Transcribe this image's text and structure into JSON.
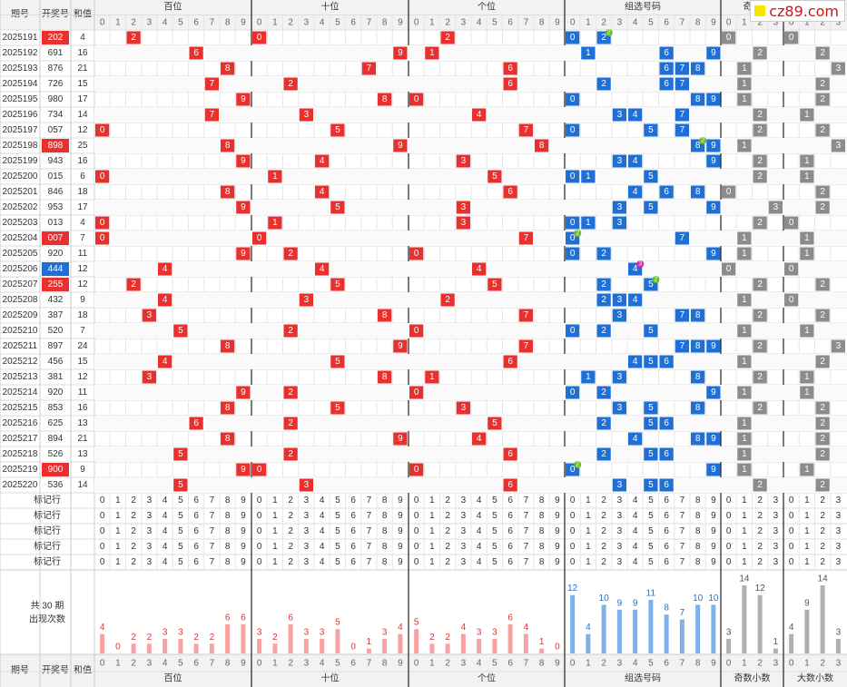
{
  "header": {
    "issue_label": "期号",
    "draw_label": "开奖号",
    "sum_label": "和值",
    "groups": [
      "百位",
      "十位",
      "个位",
      "组选号码",
      "奇数小数",
      "大数小数"
    ],
    "group_top_labels": [
      "百位",
      "十位",
      "个位",
      "组选号码",
      "奇数"
    ],
    "digits": [
      "0",
      "1",
      "2",
      "3",
      "4",
      "5",
      "6",
      "7",
      "8",
      "9"
    ],
    "small_digits": [
      "0",
      "1",
      "2",
      "3"
    ]
  },
  "watermark": "cz89.com",
  "colors": {
    "red": "#e8302f",
    "blue": "#1e6fd6",
    "gray": "#8c8c8c",
    "green": "#6cbc2a",
    "pink": "#d8279a"
  },
  "chart_data": {
    "type": "table",
    "rows": [
      {
        "issue": "2025191",
        "draw": "202",
        "sum": "4",
        "hl": "red",
        "pos": [
          2,
          0,
          2
        ],
        "group": [
          0,
          2
        ],
        "badge": {
          "d": 2,
          "n": "2",
          "c": "green"
        },
        "odd": 0,
        "big": 0
      },
      {
        "issue": "2025192",
        "draw": "691",
        "sum": "16",
        "hl": "",
        "pos": [
          6,
          9,
          1
        ],
        "group": [
          1,
          6,
          9
        ],
        "badge": null,
        "odd": 2,
        "big": 2
      },
      {
        "issue": "2025193",
        "draw": "876",
        "sum": "21",
        "hl": "",
        "pos": [
          8,
          7,
          6
        ],
        "group": [
          6,
          7,
          8
        ],
        "badge": null,
        "odd": 1,
        "big": 3
      },
      {
        "issue": "2025194",
        "draw": "726",
        "sum": "15",
        "hl": "",
        "pos": [
          7,
          2,
          6
        ],
        "group": [
          2,
          6,
          7
        ],
        "badge": null,
        "odd": 1,
        "big": 2
      },
      {
        "issue": "2025195",
        "draw": "980",
        "sum": "17",
        "hl": "",
        "pos": [
          9,
          8,
          0
        ],
        "group": [
          0,
          8,
          9
        ],
        "badge": null,
        "odd": 1,
        "big": 2
      },
      {
        "issue": "2025196",
        "draw": "734",
        "sum": "14",
        "hl": "",
        "pos": [
          7,
          3,
          4
        ],
        "group": [
          3,
          4,
          7
        ],
        "badge": null,
        "odd": 2,
        "big": 1
      },
      {
        "issue": "2025197",
        "draw": "057",
        "sum": "12",
        "hl": "",
        "pos": [
          0,
          5,
          7
        ],
        "group": [
          0,
          5,
          7
        ],
        "badge": null,
        "odd": 2,
        "big": 2
      },
      {
        "issue": "2025198",
        "draw": "898",
        "sum": "25",
        "hl": "red",
        "pos": [
          8,
          9,
          8
        ],
        "group": [
          8,
          9
        ],
        "badge": {
          "d": 8,
          "n": "2",
          "c": "green"
        },
        "odd": 1,
        "big": 3
      },
      {
        "issue": "2025199",
        "draw": "943",
        "sum": "16",
        "hl": "",
        "pos": [
          9,
          4,
          3
        ],
        "group": [
          3,
          4,
          9
        ],
        "badge": null,
        "odd": 2,
        "big": 1
      },
      {
        "issue": "2025200",
        "draw": "015",
        "sum": "6",
        "hl": "",
        "pos": [
          0,
          1,
          5
        ],
        "group": [
          0,
          1,
          5
        ],
        "badge": null,
        "odd": 2,
        "big": 1
      },
      {
        "issue": "2025201",
        "draw": "846",
        "sum": "18",
        "hl": "",
        "pos": [
          8,
          4,
          6
        ],
        "group": [
          4,
          6,
          8
        ],
        "badge": null,
        "odd": 0,
        "big": 2
      },
      {
        "issue": "2025202",
        "draw": "953",
        "sum": "17",
        "hl": "",
        "pos": [
          9,
          5,
          3
        ],
        "group": [
          3,
          5,
          9
        ],
        "badge": null,
        "odd": 3,
        "big": 2
      },
      {
        "issue": "2025203",
        "draw": "013",
        "sum": "4",
        "hl": "",
        "pos": [
          0,
          1,
          3
        ],
        "group": [
          0,
          1,
          3
        ],
        "badge": null,
        "odd": 2,
        "big": 0
      },
      {
        "issue": "2025204",
        "draw": "007",
        "sum": "7",
        "hl": "red",
        "pos": [
          0,
          0,
          7
        ],
        "group": [
          0,
          7
        ],
        "badge": {
          "d": 0,
          "n": "2",
          "c": "green"
        },
        "odd": 1,
        "big": 1
      },
      {
        "issue": "2025205",
        "draw": "920",
        "sum": "11",
        "hl": "",
        "pos": [
          9,
          2,
          0
        ],
        "group": [
          0,
          2,
          9
        ],
        "badge": null,
        "odd": 1,
        "big": 1
      },
      {
        "issue": "2025206",
        "draw": "444",
        "sum": "12",
        "hl": "blue",
        "pos": [
          4,
          4,
          4
        ],
        "group": [
          4
        ],
        "badge": {
          "d": 4,
          "n": "3",
          "c": "pink"
        },
        "odd": 0,
        "big": 0
      },
      {
        "issue": "2025207",
        "draw": "255",
        "sum": "12",
        "hl": "red",
        "pos": [
          2,
          5,
          5
        ],
        "group": [
          2,
          5
        ],
        "badge": {
          "d": 5,
          "n": "2",
          "c": "green"
        },
        "odd": 2,
        "big": 2
      },
      {
        "issue": "2025208",
        "draw": "432",
        "sum": "9",
        "hl": "",
        "pos": [
          4,
          3,
          2
        ],
        "group": [
          2,
          3,
          4
        ],
        "badge": null,
        "odd": 1,
        "big": 0
      },
      {
        "issue": "2025209",
        "draw": "387",
        "sum": "18",
        "hl": "",
        "pos": [
          3,
          8,
          7
        ],
        "group": [
          3,
          7,
          8
        ],
        "badge": null,
        "odd": 2,
        "big": 2
      },
      {
        "issue": "2025210",
        "draw": "520",
        "sum": "7",
        "hl": "",
        "pos": [
          5,
          2,
          0
        ],
        "group": [
          0,
          2,
          5
        ],
        "badge": null,
        "odd": 1,
        "big": 1
      },
      {
        "issue": "2025211",
        "draw": "897",
        "sum": "24",
        "hl": "",
        "pos": [
          8,
          9,
          7
        ],
        "group": [
          7,
          8,
          9
        ],
        "badge": null,
        "odd": 2,
        "big": 3
      },
      {
        "issue": "2025212",
        "draw": "456",
        "sum": "15",
        "hl": "",
        "pos": [
          4,
          5,
          6
        ],
        "group": [
          4,
          5,
          6
        ],
        "badge": null,
        "odd": 1,
        "big": 2
      },
      {
        "issue": "2025213",
        "draw": "381",
        "sum": "12",
        "hl": "",
        "pos": [
          3,
          8,
          1
        ],
        "group": [
          1,
          3,
          8
        ],
        "badge": null,
        "odd": 2,
        "big": 1
      },
      {
        "issue": "2025214",
        "draw": "920",
        "sum": "11",
        "hl": "",
        "pos": [
          9,
          2,
          0
        ],
        "group": [
          0,
          2,
          9
        ],
        "badge": null,
        "odd": 1,
        "big": 1
      },
      {
        "issue": "2025215",
        "draw": "853",
        "sum": "16",
        "hl": "",
        "pos": [
          8,
          5,
          3
        ],
        "group": [
          3,
          5,
          8
        ],
        "badge": null,
        "odd": 2,
        "big": 2
      },
      {
        "issue": "2025216",
        "draw": "625",
        "sum": "13",
        "hl": "",
        "pos": [
          6,
          2,
          5
        ],
        "group": [
          2,
          5,
          6
        ],
        "badge": null,
        "odd": 1,
        "big": 2
      },
      {
        "issue": "2025217",
        "draw": "894",
        "sum": "21",
        "hl": "",
        "pos": [
          8,
          9,
          4
        ],
        "group": [
          4,
          8,
          9
        ],
        "badge": null,
        "odd": 1,
        "big": 2
      },
      {
        "issue": "2025218",
        "draw": "526",
        "sum": "13",
        "hl": "",
        "pos": [
          5,
          2,
          6
        ],
        "group": [
          2,
          5,
          6
        ],
        "badge": null,
        "odd": 1,
        "big": 2
      },
      {
        "issue": "2025219",
        "draw": "900",
        "sum": "9",
        "hl": "red",
        "pos": [
          9,
          0,
          0
        ],
        "group": [
          0,
          9
        ],
        "badge": {
          "d": 0,
          "n": "2",
          "c": "green"
        },
        "odd": 1,
        "big": 1
      },
      {
        "issue": "2025220",
        "draw": "536",
        "sum": "14",
        "hl": "",
        "pos": [
          5,
          3,
          6
        ],
        "group": [
          3,
          5,
          6
        ],
        "badge": null,
        "odd": 2,
        "big": 2
      }
    ],
    "marker_label": "标记行",
    "marker_rows": 5,
    "summary_label": [
      "共 30 期",
      "出现次数"
    ],
    "counts": {
      "hundreds": [
        4,
        0,
        2,
        2,
        3,
        3,
        2,
        2,
        6,
        6
      ],
      "tens": [
        3,
        2,
        6,
        3,
        3,
        5,
        0,
        1,
        3,
        4
      ],
      "units": [
        5,
        2,
        2,
        4,
        3,
        3,
        6,
        4,
        1,
        0
      ],
      "group": [
        12,
        4,
        10,
        9,
        9,
        11,
        8,
        7,
        10,
        10
      ],
      "odd": [
        3,
        14,
        12,
        1
      ],
      "big": [
        4,
        9,
        14,
        3
      ]
    }
  }
}
